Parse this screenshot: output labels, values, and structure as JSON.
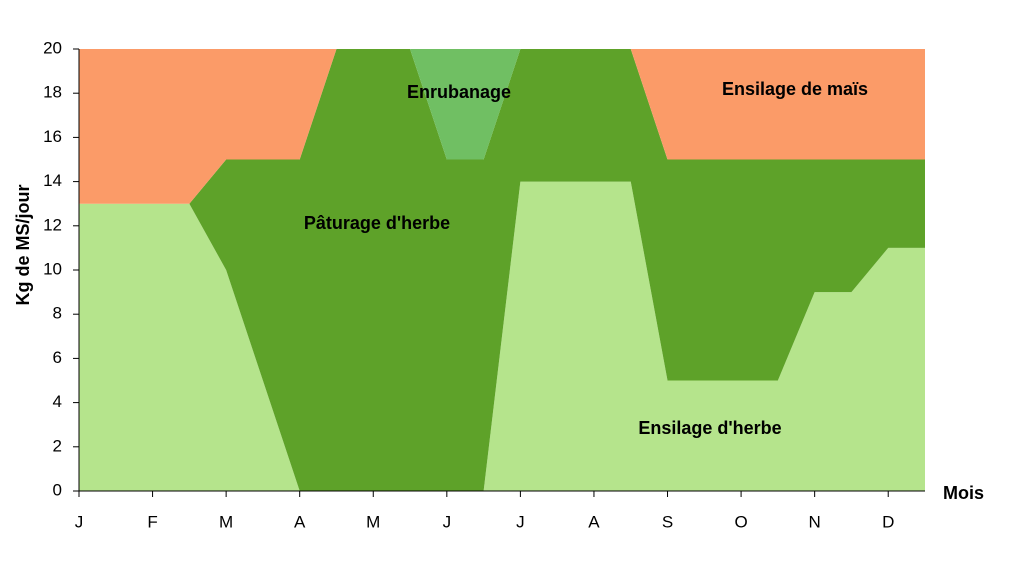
{
  "chart_data": {
    "type": "stacked-area",
    "x": [
      0,
      0.5,
      1,
      1.5,
      2,
      2.5,
      3,
      3.5,
      4,
      4.5,
      5,
      5.5,
      6,
      6.5,
      7,
      7.5,
      8,
      8.5,
      9,
      9.5,
      10,
      10.5,
      11,
      11.5
    ],
    "xlim": [
      0,
      11.5
    ],
    "xticks": [
      {
        "value": 0,
        "label": "J"
      },
      {
        "value": 1,
        "label": "F"
      },
      {
        "value": 2,
        "label": "M"
      },
      {
        "value": 3,
        "label": "A"
      },
      {
        "value": 4,
        "label": "M"
      },
      {
        "value": 5,
        "label": "J"
      },
      {
        "value": 6,
        "label": "J"
      },
      {
        "value": 7,
        "label": "A"
      },
      {
        "value": 8,
        "label": "S"
      },
      {
        "value": 9,
        "label": "O"
      },
      {
        "value": 10,
        "label": "N"
      },
      {
        "value": 11,
        "label": "D"
      }
    ],
    "x_label": "Mois",
    "y_label": "Kg de MS/jour",
    "ylim": [
      0,
      20
    ],
    "yticks": [
      0,
      2,
      4,
      6,
      8,
      10,
      12,
      14,
      16,
      18,
      20
    ],
    "series": [
      {
        "name": "Ensilage d'herbe",
        "color": "#b5e48c",
        "values": [
          13,
          13,
          13,
          13,
          10,
          5,
          0,
          0,
          0,
          0,
          0,
          0,
          14,
          14,
          14,
          14,
          5,
          5,
          5,
          5,
          9,
          9,
          11,
          11
        ]
      },
      {
        "name": "Pâturage d'herbe",
        "color": "#5ea229",
        "values": [
          0,
          0,
          0,
          0,
          5,
          10,
          15,
          20,
          20,
          20,
          15,
          15,
          6,
          6,
          6,
          6,
          10,
          10,
          10,
          10,
          6,
          6,
          4,
          4
        ]
      },
      {
        "name": "Enrubanage",
        "color": "#70bf63",
        "values": [
          0,
          0,
          0,
          0,
          0,
          0,
          0,
          0,
          0,
          0,
          5,
          5,
          0,
          0,
          0,
          0,
          0,
          0,
          0,
          0,
          0,
          0,
          0,
          0
        ]
      },
      {
        "name": "Ensilage de maïs",
        "color": "#fb9b68",
        "values": [
          7,
          7,
          7,
          7,
          5,
          5,
          5,
          0,
          0,
          0,
          0,
          0,
          0,
          0,
          0,
          0,
          5,
          5,
          5,
          5,
          5,
          5,
          5,
          5
        ]
      }
    ]
  }
}
